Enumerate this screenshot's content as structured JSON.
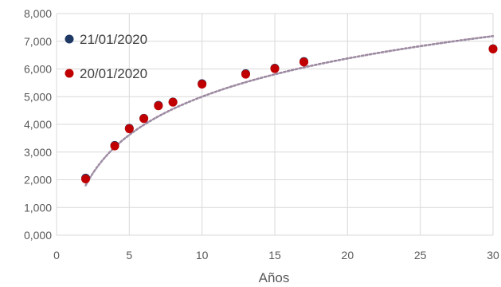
{
  "chart_data": {
    "type": "scatter",
    "xlabel": "Años",
    "ylabel": "",
    "xlim": [
      0,
      30
    ],
    "ylim": [
      0,
      8
    ],
    "x_ticks": [
      0,
      5,
      10,
      15,
      20,
      25,
      30
    ],
    "x_tick_labels": [
      "0",
      "5",
      "10",
      "15",
      "20",
      "25",
      "30"
    ],
    "y_ticks": [
      0,
      1,
      2,
      3,
      4,
      5,
      6,
      7,
      8
    ],
    "y_tick_labels": [
      "0,000",
      "1,000",
      "2,000",
      "3,000",
      "4,000",
      "5,000",
      "6,000",
      "7,000",
      "8,000"
    ],
    "grid": true,
    "legend_position": "top-left",
    "series": [
      {
        "name": "21/01/2020",
        "color": "#1f3864",
        "x": [
          2,
          4,
          5,
          6,
          7,
          8,
          10,
          13,
          15,
          17,
          30
        ],
        "y": [
          2.06,
          3.24,
          3.86,
          4.22,
          4.69,
          4.81,
          5.47,
          5.83,
          6.03,
          6.27,
          6.73
        ]
      },
      {
        "name": "20/01/2020",
        "color": "#c00000",
        "x": [
          2,
          4,
          5,
          6,
          7,
          8,
          10,
          13,
          15,
          17,
          30
        ],
        "y": [
          2.03,
          3.22,
          3.84,
          4.21,
          4.67,
          4.8,
          5.45,
          5.81,
          6.01,
          6.25,
          6.72
        ]
      }
    ],
    "trendlines": [
      {
        "type": "logarithmic",
        "color": "#7b4f6e",
        "style": "dotted",
        "a": 0.42,
        "b": 1.99
      },
      {
        "type": "logarithmic",
        "color": "#9e8fa6",
        "style": "dotted",
        "a": 0.41,
        "b": 1.99
      }
    ]
  }
}
